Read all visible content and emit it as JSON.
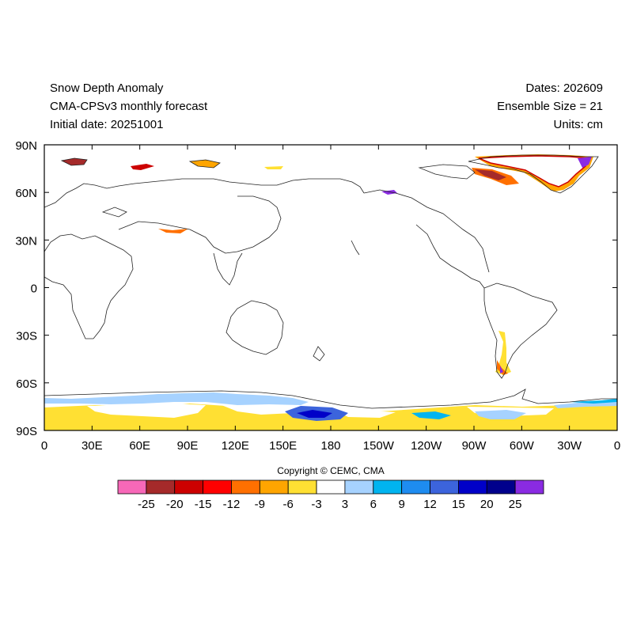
{
  "header": {
    "title": "Snow Depth Anomaly",
    "subtitle": "CMA-CPSv3 monthly forecast",
    "initial_date": "Initial date: 20251001",
    "dates": "Dates: 202609",
    "ensemble": "Ensemble Size = 21",
    "units": "Units: cm"
  },
  "map": {
    "lat_ticks": [
      "90N",
      "60N",
      "30N",
      "0",
      "30S",
      "60S",
      "90S"
    ],
    "lon_ticks": [
      "0",
      "30E",
      "60E",
      "90E",
      "120E",
      "150E",
      "180",
      "150W",
      "120W",
      "90W",
      "60W",
      "30W",
      "0"
    ]
  },
  "copyright": "Copyright © CEMC, CMA",
  "colorbar": {
    "colors": [
      "#f768b8",
      "#a52a2a",
      "#cc0000",
      "#ff0000",
      "#ff7000",
      "#ffa500",
      "#ffe033",
      "#ffffff",
      "#a6d2ff",
      "#00b4f0",
      "#1e8cf0",
      "#3c64dc",
      "#0000c8",
      "#00008c",
      "#8a2be2"
    ],
    "labels": [
      "-25",
      "-20",
      "-15",
      "-12",
      "-9",
      "-6",
      "-3",
      "3",
      "6",
      "9",
      "12",
      "15",
      "20",
      "25"
    ]
  }
}
